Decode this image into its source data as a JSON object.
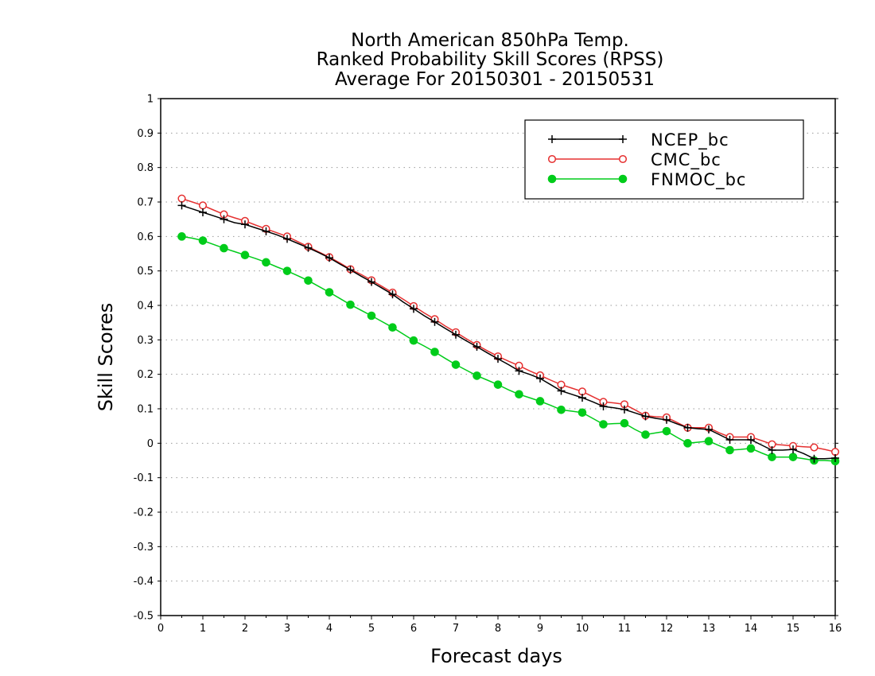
{
  "chart_data": {
    "type": "line",
    "title": [
      "North American 850hPa Temp.",
      "Ranked Probability Skill Scores (RPSS)",
      "Average For 20150301 - 20150531"
    ],
    "xlabel": "Forecast days",
    "ylabel": "Skill Scores",
    "xlim": [
      0,
      16
    ],
    "ylim": [
      -0.5,
      1
    ],
    "x_ticks": [
      "0",
      "1",
      "2",
      "3",
      "4",
      "5",
      "6",
      "7",
      "8",
      "9",
      "10",
      "11",
      "12",
      "13",
      "14",
      "15",
      "16"
    ],
    "y_ticks": [
      "1",
      "0.9",
      "0.8",
      "0.7",
      "0.6",
      "0.5",
      "0.4",
      "0.3",
      "0.2",
      "0.1",
      "0",
      "-0.1",
      "-0.2",
      "-0.3",
      "-0.4",
      "-0.5"
    ],
    "grid": true,
    "legend_position": "top-right",
    "x": [
      0.5,
      0.75,
      1,
      1.25,
      1.5,
      1.75,
      2,
      2.25,
      2.5,
      2.75,
      3,
      3.25,
      3.5,
      3.75,
      4,
      4.25,
      4.5,
      4.75,
      5,
      5.25,
      5.5,
      5.75,
      6,
      6.25,
      6.5,
      6.75,
      7,
      7.25,
      7.5,
      7.75,
      8,
      8.25,
      8.5,
      8.75,
      9,
      9.25,
      9.5,
      9.75,
      10,
      10.25,
      10.5,
      10.75,
      11,
      11.25,
      11.5,
      11.75,
      12,
      12.25,
      12.5,
      12.75,
      13,
      13.25,
      13.5,
      13.75,
      14,
      14.25,
      14.5,
      14.75,
      15,
      15.25,
      15.5,
      15.75,
      16
    ],
    "series": [
      {
        "name": "NCEP_bc",
        "color": "#000000",
        "marker": "plus",
        "values": [
          0.69,
          0.68,
          0.67,
          0.66,
          0.65,
          0.64,
          0.635,
          0.625,
          0.615,
          0.605,
          0.593,
          0.58,
          0.567,
          0.553,
          0.538,
          0.52,
          0.503,
          0.485,
          0.468,
          0.45,
          0.432,
          0.41,
          0.39,
          0.37,
          0.352,
          0.333,
          0.315,
          0.297,
          0.28,
          0.262,
          0.245,
          0.228,
          0.21,
          0.2,
          0.188,
          0.17,
          0.152,
          0.142,
          0.132,
          0.12,
          0.107,
          0.103,
          0.098,
          0.088,
          0.078,
          0.072,
          0.068,
          0.056,
          0.045,
          0.042,
          0.04,
          0.025,
          0.01,
          0.01,
          0.01,
          -0.005,
          -0.02,
          -0.02,
          -0.018,
          -0.03,
          -0.045,
          -0.045,
          -0.043
        ]
      },
      {
        "name": "CMC_bc",
        "color": "#e53030",
        "marker": "open-circle",
        "values": [
          0.71,
          0.7,
          0.69,
          0.677,
          0.664,
          0.654,
          0.645,
          0.633,
          0.622,
          0.611,
          0.6,
          0.585,
          0.57,
          0.555,
          0.54,
          0.523,
          0.505,
          0.49,
          0.473,
          0.455,
          0.437,
          0.418,
          0.398,
          0.378,
          0.36,
          0.34,
          0.322,
          0.303,
          0.285,
          0.268,
          0.252,
          0.238,
          0.225,
          0.21,
          0.197,
          0.183,
          0.17,
          0.16,
          0.15,
          0.135,
          0.12,
          0.117,
          0.113,
          0.097,
          0.08,
          0.077,
          0.075,
          0.06,
          0.045,
          0.045,
          0.045,
          0.03,
          0.018,
          0.018,
          0.018,
          0.008,
          -0.003,
          -0.005,
          -0.008,
          -0.01,
          -0.012,
          -0.018,
          -0.025
        ]
      },
      {
        "name": "FNMOC_bc",
        "color": "#00cc1a",
        "marker": "filled-circle",
        "values": [
          0.6,
          0.595,
          0.588,
          0.577,
          0.566,
          0.556,
          0.546,
          0.536,
          0.525,
          0.512,
          0.5,
          0.486,
          0.472,
          0.455,
          0.438,
          0.42,
          0.402,
          0.386,
          0.37,
          0.353,
          0.336,
          0.317,
          0.298,
          0.282,
          0.265,
          0.246,
          0.228,
          0.212,
          0.196,
          0.183,
          0.17,
          0.155,
          0.142,
          0.132,
          0.122,
          0.11,
          0.097,
          0.093,
          0.089,
          0.072,
          0.055,
          0.057,
          0.058,
          0.04,
          0.025,
          0.03,
          0.035,
          0.017,
          0.0,
          0.003,
          0.006,
          -0.007,
          -0.02,
          -0.018,
          -0.015,
          -0.028,
          -0.04,
          -0.04,
          -0.04,
          -0.045,
          -0.05,
          -0.05,
          -0.052
        ]
      }
    ]
  }
}
